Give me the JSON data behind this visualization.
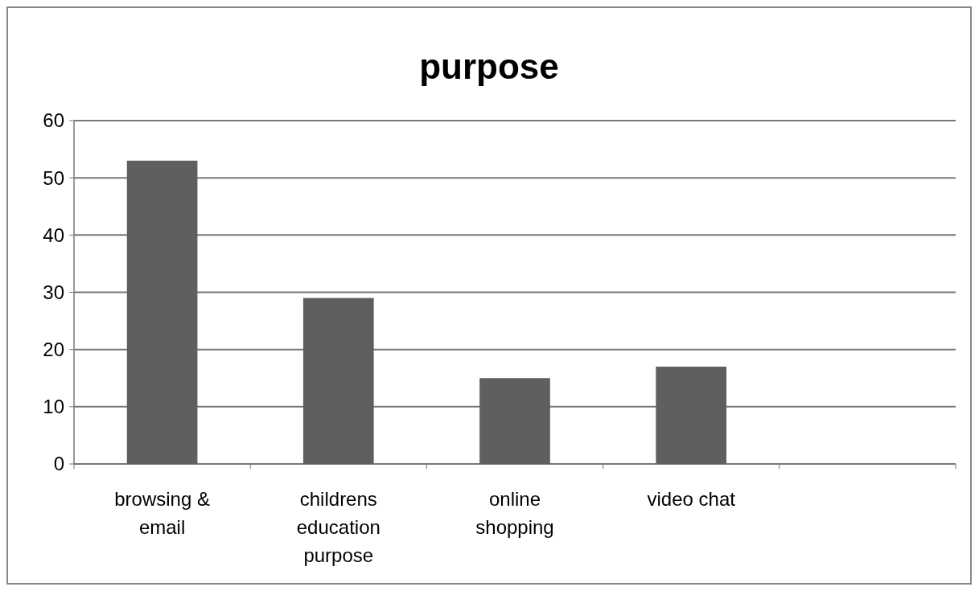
{
  "chart_data": {
    "type": "bar",
    "title": "purpose",
    "categories": [
      "browsing & email",
      "childrens education purpose",
      "online shopping",
      "video chat",
      null
    ],
    "values": [
      53,
      29,
      15,
      17,
      null
    ],
    "color": "#5f5f5f",
    "ylim": [
      0,
      60
    ],
    "yticks": [
      0,
      10,
      20,
      30,
      40,
      50,
      60
    ],
    "grid": "y"
  }
}
